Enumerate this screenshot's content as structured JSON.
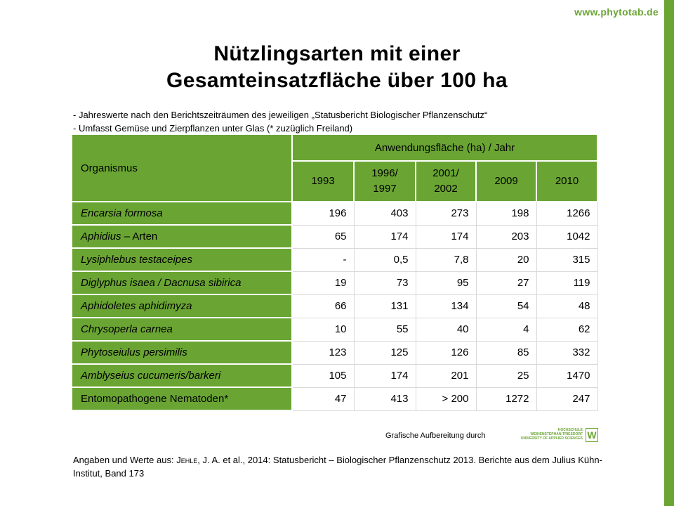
{
  "site": {
    "url": "www.phytotab.de"
  },
  "title": {
    "line1": "Nützlingsarten mit einer",
    "line2": "Gesamteinsatzfläche über 100 ha"
  },
  "notes": [
    "- Jahreswerte nach den Berichtszeiträumen des jeweiligen „Statusbericht Biologischer Pflanzenschutz“",
    "- Umfasst Gemüse und Zierpflanzen unter Glas (* zuzüglich Freiland)"
  ],
  "table": {
    "organism_header": "Organismus",
    "area_header": "Anwendungsfläche (ha) / Jahr",
    "years": [
      {
        "line1": "1993",
        "line2": ""
      },
      {
        "line1": "1996/",
        "line2": "1997"
      },
      {
        "line1": "2001/",
        "line2": "2002"
      },
      {
        "line1": "2009",
        "line2": ""
      },
      {
        "line1": "2010",
        "line2": ""
      }
    ],
    "rows": [
      {
        "organism": "Encarsia formosa",
        "italic": true,
        "values": [
          "196",
          "403",
          "273",
          "198",
          "1266"
        ]
      },
      {
        "organism": "Aphidius",
        "suffix": " – Arten",
        "italic": true,
        "values": [
          "65",
          "174",
          "174",
          "203",
          "1042"
        ]
      },
      {
        "organism": "Lysiphlebus testaceipes",
        "italic": true,
        "values": [
          "-",
          "0,5",
          "7,8",
          "20",
          "315"
        ]
      },
      {
        "organism": "Diglyphus isaea / Dacnusa sibirica",
        "italic": true,
        "values": [
          "19",
          "73",
          "95",
          "27",
          "119"
        ]
      },
      {
        "organism": "Aphidoletes aphidimyza",
        "italic": true,
        "values": [
          "66",
          "131",
          "134",
          "54",
          "48"
        ]
      },
      {
        "organism": "Chrysoperla carnea",
        "italic": true,
        "values": [
          "10",
          "55",
          "40",
          "4",
          "62"
        ]
      },
      {
        "organism": "Phytoseiulus persimilis",
        "italic": true,
        "values": [
          "123",
          "125",
          "126",
          "85",
          "332"
        ]
      },
      {
        "organism": "Amblyseius cucumeris/barkeri",
        "italic": true,
        "values": [
          "105",
          "174",
          "201",
          "25",
          "1470"
        ]
      },
      {
        "organism": "Entomopathogene Nematoden*",
        "italic": false,
        "values": [
          "47",
          "413",
          "> 200",
          "1272",
          "247"
        ]
      }
    ]
  },
  "credit": {
    "text": "Grafische Aufbereitung durch"
  },
  "logo": {
    "line1": "HOCHSCHULE",
    "line2": "WEIHENSTEPHAN-TRIESDORF",
    "line3": "UNIVERSITY OF APPLIED SCIENCES",
    "mark": "W"
  },
  "source": {
    "prefix": "Angaben und Werte aus: ",
    "author": "Jehle",
    "rest": ", J. A. et al., 2014: Statusbericht – Biologischer Pflanzenschutz 2013. Berichte aus dem Julius Kühn-Institut, Band 173"
  },
  "colors": {
    "accent": "#6aa533",
    "bar": "#6aa533"
  }
}
